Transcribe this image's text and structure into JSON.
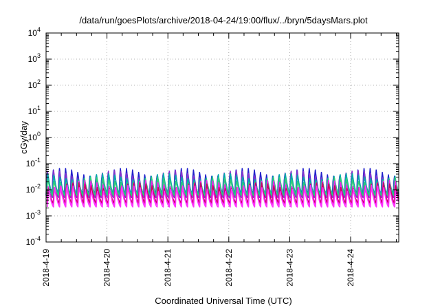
{
  "chart_data": {
    "type": "line",
    "title": "/data/run/goesPlots/archive/2018-04-24/19:00/flux/../bryn/5daysMars.plot",
    "xlabel": "Coordinated Universal Time (UTC)",
    "ylabel": "cGy/day",
    "yscale": "log",
    "ylim": [
      0.0001,
      10000
    ],
    "xlim": [
      "2018-04-19",
      "2018-04-24T19:00"
    ],
    "x_ticks": [
      "2018-4-19",
      "2018-4-20",
      "2018-4-21",
      "2018-4-22",
      "2018-4-23",
      "2018-4-24"
    ],
    "y_ticks": [
      {
        "base": "10",
        "exp": "-4"
      },
      {
        "base": "10",
        "exp": "-3"
      },
      {
        "base": "10",
        "exp": "-2"
      },
      {
        "base": "10",
        "exp": "-1"
      },
      {
        "base": "10",
        "exp": "0"
      },
      {
        "base": "10",
        "exp": "1"
      },
      {
        "base": "10",
        "exp": "2"
      },
      {
        "base": "10",
        "exp": "3"
      },
      {
        "base": "10",
        "exp": "4"
      }
    ],
    "grid": true,
    "legend": "none",
    "days": 5.79,
    "cycles_per_day": 10,
    "series": [
      {
        "color": "#2222cc",
        "min": 0.006,
        "max": 0.085
      },
      {
        "color": "#8833cc",
        "min": 0.005,
        "max": 0.07
      },
      {
        "color": "#00aaaa",
        "min": 0.007,
        "max": 0.05
      },
      {
        "color": "#33cc77",
        "min": 0.006,
        "max": 0.035
      },
      {
        "color": "#ee22ee",
        "min": 0.0028,
        "max": 0.028
      },
      {
        "color": "#cc0066",
        "min": 0.0032,
        "max": 0.022
      },
      {
        "color": "#ff33ff",
        "min": 0.0022,
        "max": 0.018
      }
    ]
  }
}
